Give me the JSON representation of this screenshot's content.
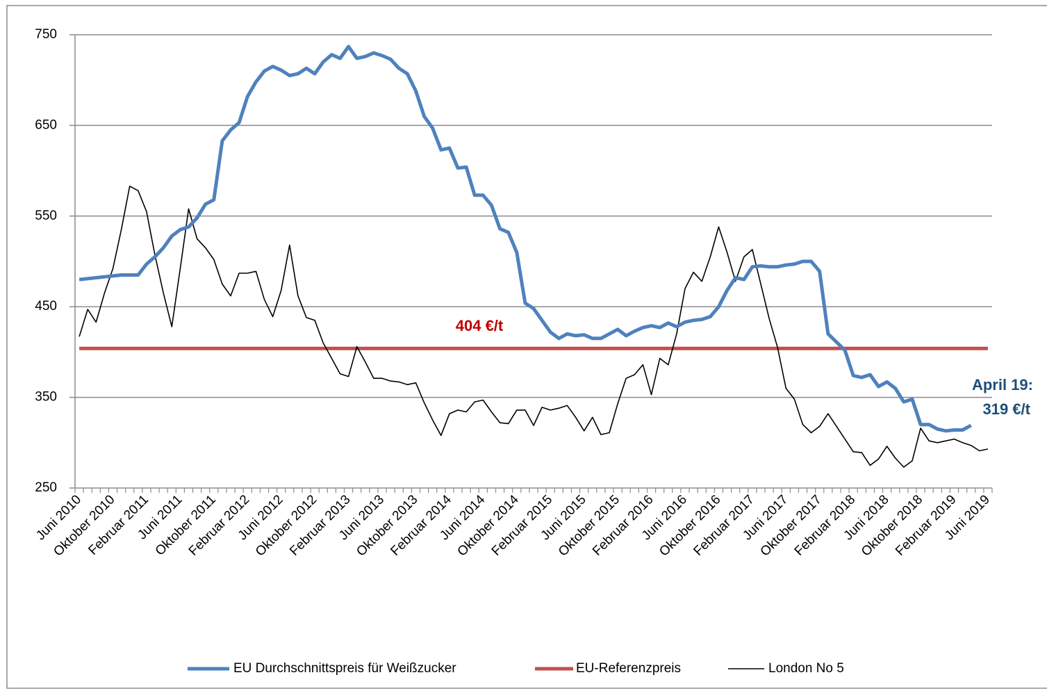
{
  "chart_data": {
    "type": "line",
    "categories": [
      "Juni 2010",
      null,
      null,
      null,
      "Oktober 2010",
      null,
      null,
      null,
      "Februar 2011",
      null,
      null,
      null,
      "Juni 2011",
      null,
      null,
      null,
      "Oktober 2011",
      null,
      null,
      null,
      "Februar 2012",
      null,
      null,
      null,
      "Juni 2012",
      null,
      null,
      null,
      "Oktober 2012",
      null,
      null,
      null,
      "Februar 2013",
      null,
      null,
      null,
      "Juni 2013",
      null,
      null,
      null,
      "Oktober 2013",
      null,
      null,
      null,
      "Februar 2014",
      null,
      null,
      null,
      "Juni 2014",
      null,
      null,
      null,
      "Oktober 2014",
      null,
      null,
      null,
      "Februar 2015",
      null,
      null,
      null,
      "Juni 2015",
      null,
      null,
      null,
      "Oktober 2015",
      null,
      null,
      null,
      "Februar 2016",
      null,
      null,
      null,
      "Juni 2016",
      null,
      null,
      null,
      "Oktober 2016",
      null,
      null,
      null,
      "Februar 2017",
      null,
      null,
      null,
      "Juni 2017",
      null,
      null,
      null,
      "Oktober 2017",
      null,
      null,
      null,
      "Februar 2018",
      null,
      null,
      null,
      "Juni 2018",
      null,
      null,
      null,
      "Oktober 2018",
      null,
      null,
      null,
      "Februar 2019",
      null,
      null,
      null,
      "Juni 2019"
    ],
    "series": [
      {
        "name": "EU Durchschnittspreis für Weißzucker",
        "color": "#4f81bd",
        "width": 5,
        "values": [
          480,
          481,
          482,
          483,
          484,
          485,
          485,
          485,
          497,
          505,
          515,
          528,
          535,
          538,
          548,
          563,
          568,
          633,
          645,
          653,
          682,
          698,
          710,
          715,
          711,
          705,
          707,
          713,
          707,
          720,
          728,
          724,
          737,
          724,
          726,
          730,
          727,
          723,
          713,
          707,
          688,
          660,
          647,
          623,
          625,
          603,
          604,
          573,
          573,
          562,
          536,
          532,
          510,
          454,
          448,
          435,
          422,
          415,
          420,
          418,
          419,
          415,
          415,
          420,
          425,
          418,
          423,
          427,
          429,
          427,
          432,
          428,
          433,
          435,
          436,
          439,
          450,
          468,
          482,
          480,
          494,
          495,
          494,
          494,
          496,
          497,
          500,
          500,
          489,
          420,
          411,
          402,
          374,
          372,
          375,
          362,
          367,
          360,
          345,
          348,
          320,
          320,
          315,
          313,
          314,
          314,
          319,
          null,
          null
        ]
      },
      {
        "name": "EU-Referenzpreis",
        "color": "#c0504d",
        "width": 5,
        "values": [
          404,
          404,
          404,
          404,
          404,
          404,
          404,
          404,
          404,
          404,
          404,
          404,
          404,
          404,
          404,
          404,
          404,
          404,
          404,
          404,
          404,
          404,
          404,
          404,
          404,
          404,
          404,
          404,
          404,
          404,
          404,
          404,
          404,
          404,
          404,
          404,
          404,
          404,
          404,
          404,
          404,
          404,
          404,
          404,
          404,
          404,
          404,
          404,
          404,
          404,
          404,
          404,
          404,
          404,
          404,
          404,
          404,
          404,
          404,
          404,
          404,
          404,
          404,
          404,
          404,
          404,
          404,
          404,
          404,
          404,
          404,
          404,
          404,
          404,
          404,
          404,
          404,
          404,
          404,
          404,
          404,
          404,
          404,
          404,
          404,
          404,
          404,
          404,
          404,
          404,
          404,
          404,
          404,
          404,
          404,
          404,
          404,
          404,
          404,
          404,
          404,
          404,
          404,
          404,
          404,
          404,
          404,
          404,
          404
        ]
      },
      {
        "name": "London No 5",
        "color": "#000000",
        "width": 1.6,
        "values": [
          417,
          447,
          433,
          465,
          492,
          535,
          583,
          578,
          555,
          507,
          465,
          428,
          492,
          558,
          525,
          515,
          502,
          475,
          462,
          487,
          487,
          489,
          458,
          439,
          468,
          518,
          462,
          438,
          435,
          410,
          393,
          376,
          373,
          406,
          389,
          371,
          371,
          368,
          367,
          364,
          366,
          344,
          325,
          308,
          332,
          336,
          334,
          345,
          347,
          334,
          322,
          321,
          336,
          336,
          319,
          339,
          336,
          338,
          341,
          328,
          313,
          328,
          309,
          311,
          343,
          371,
          375,
          386,
          353,
          393,
          386,
          420,
          470,
          488,
          478,
          505,
          538,
          510,
          478,
          505,
          513,
          475,
          437,
          405,
          360,
          348,
          320,
          311,
          318,
          332,
          318,
          304,
          290,
          289,
          275,
          282,
          296,
          283,
          273,
          280,
          316,
          302,
          300,
          302,
          304,
          300,
          297,
          291,
          293
        ]
      }
    ],
    "ylim": [
      250,
      750
    ],
    "yticks": [
      250,
      350,
      450,
      550,
      650,
      750
    ],
    "grid": true,
    "legend": "bottom",
    "annotations": [
      {
        "text": "404 €/t",
        "color": "#c00000"
      },
      {
        "text": "April 19:",
        "color": "#1f4e79"
      },
      {
        "text": "319 €/t",
        "color": "#1f4e79"
      }
    ]
  }
}
